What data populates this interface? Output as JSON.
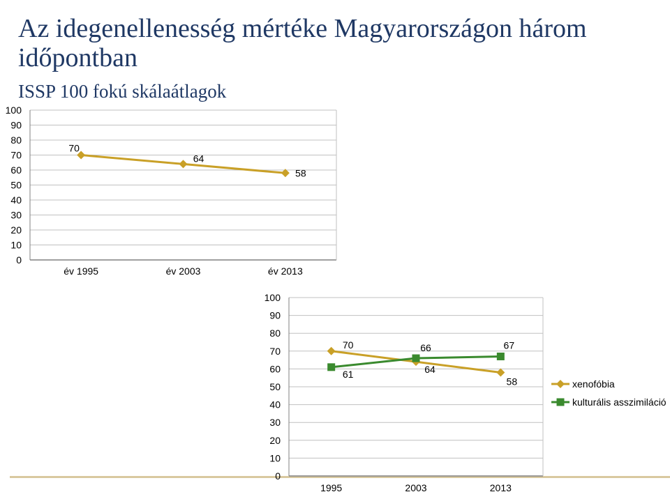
{
  "title": "Az idegenellenesség mértéke Magyarországon három időpontban",
  "subtitle": "ISSP 100 fokú skálaátlagok",
  "colors": {
    "title": "#1f3864",
    "xenofobia": "#c9a027",
    "asszimilacio": "#3a8a2e",
    "grid": "#c0c0c0",
    "axis": "#808080"
  },
  "chart_data": [
    {
      "type": "line",
      "categories": [
        "év 1995",
        "év 2003",
        "év 2013"
      ],
      "series": [
        {
          "values": [
            70,
            64,
            58
          ],
          "marker": "diamond"
        }
      ],
      "data_labels": [
        "70",
        "64",
        "58"
      ],
      "ylim": [
        0,
        100
      ],
      "yticks": [
        "0",
        "10",
        "20",
        "30",
        "40",
        "50",
        "60",
        "70",
        "80",
        "90",
        "100"
      ],
      "grid": true,
      "legend": "none"
    },
    {
      "type": "line",
      "categories": [
        "1995",
        "2003",
        "2013"
      ],
      "series": [
        {
          "name": "xenofóbia",
          "values": [
            70,
            64,
            58
          ],
          "marker": "diamond"
        },
        {
          "name": "kulturális asszimiláció",
          "values": [
            61,
            66,
            67
          ],
          "marker": "square"
        }
      ],
      "data_labels": [
        [
          "70",
          "64",
          "58"
        ],
        [
          "61",
          "66",
          "67"
        ]
      ],
      "ylim": [
        0,
        100
      ],
      "yticks": [
        "0",
        "10",
        "20",
        "30",
        "40",
        "50",
        "60",
        "70",
        "80",
        "90",
        "100"
      ],
      "grid": true,
      "legend": "right"
    }
  ]
}
